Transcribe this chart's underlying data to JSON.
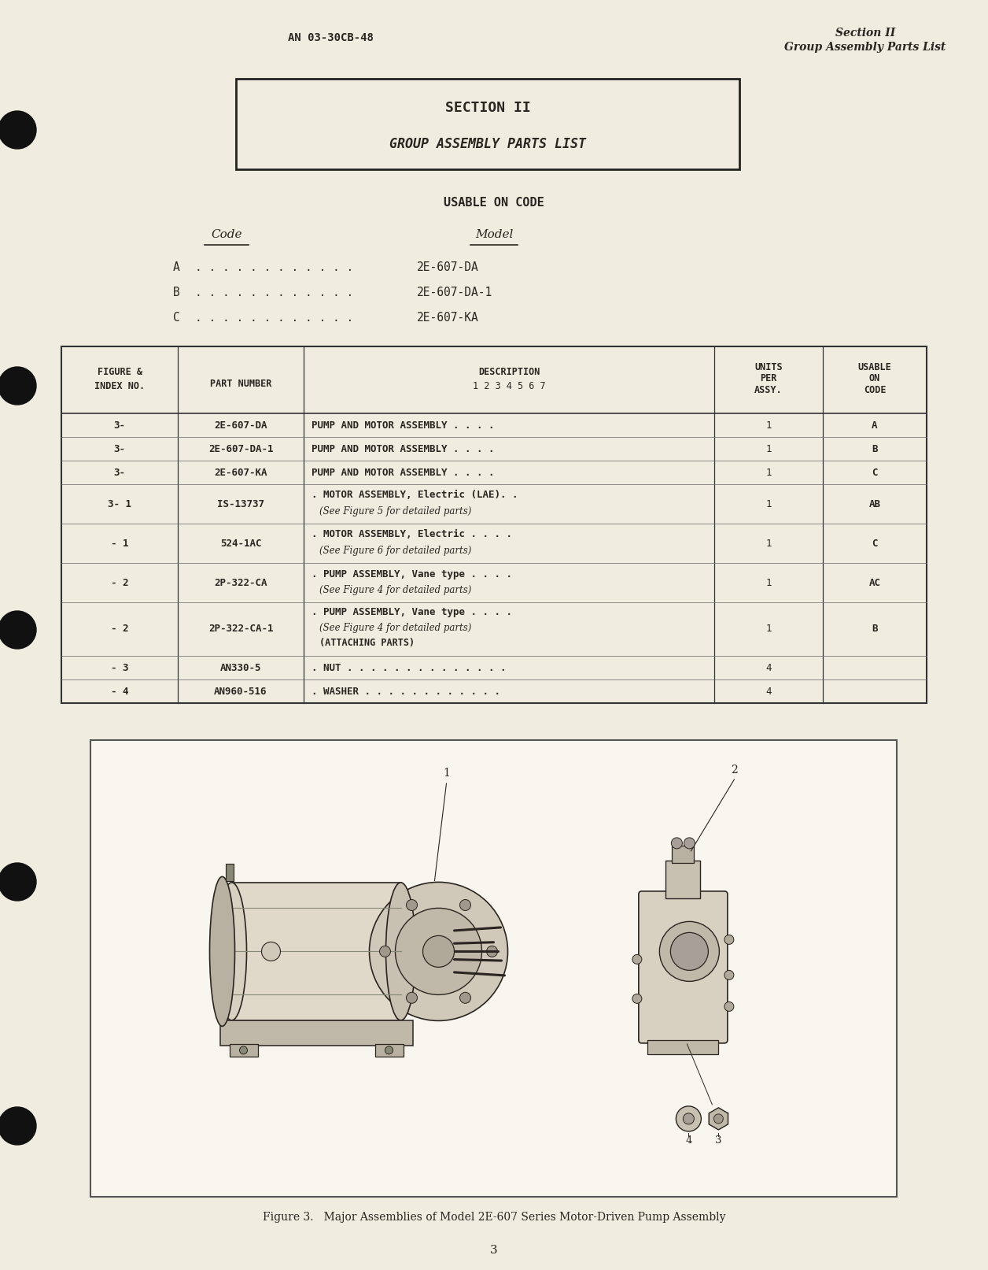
{
  "bg_color": "#f0ece0",
  "page_color": "#f0ece0",
  "fig_box_color": "#ffffff",
  "text_color": "#2a2520",
  "header_left": "AN 03-30CB-48",
  "header_right_line1": "Section II",
  "header_right_line2": "Group Assembly Parts List",
  "section_box_title": "SECTION II",
  "section_box_subtitle": "GROUP ASSEMBLY PARTS LIST",
  "usable_title": "USABLE ON CODE",
  "code_header": "Code",
  "model_header": "Model",
  "codes": [
    {
      "code": "A",
      "dots": ". . . . . . . . . . . .",
      "model": "2E-607-DA"
    },
    {
      "code": "B",
      "dots": ". . . . . . . . . . . .",
      "model": "2E-607-DA-1"
    },
    {
      "code": "C",
      "dots": ". . . . . . . . . . . .",
      "model": "2E-607-KA"
    }
  ],
  "table_rows": [
    {
      "fig": "3-",
      "part": "2E-607-DA",
      "desc1": "PUMP AND MOTOR ASSEMBLY . . . .",
      "desc2": "",
      "desc3": "",
      "qty": "1",
      "code": "A"
    },
    {
      "fig": "3-",
      "part": "2E-607-DA-1",
      "desc1": "PUMP AND MOTOR ASSEMBLY . . . .",
      "desc2": "",
      "desc3": "",
      "qty": "1",
      "code": "B"
    },
    {
      "fig": "3-",
      "part": "2E-607-KA",
      "desc1": "PUMP AND MOTOR ASSEMBLY . . . .",
      "desc2": "",
      "desc3": "",
      "qty": "1",
      "code": "C"
    },
    {
      "fig": "3- 1",
      "part": "IS-13737",
      "desc1": ". MOTOR ASSEMBLY, Electric (LAE). .",
      "desc2": "(See Figure 5 for detailed parts)",
      "desc3": "",
      "qty": "1",
      "code": "AB"
    },
    {
      "fig": "- 1",
      "part": "524-1AC",
      "desc1": ". MOTOR ASSEMBLY, Electric . . . .",
      "desc2": "(See Figure 6 for detailed parts)",
      "desc3": "",
      "qty": "1",
      "code": "C"
    },
    {
      "fig": "- 2",
      "part": "2P-322-CA",
      "desc1": ". PUMP ASSEMBLY, Vane type . . . .",
      "desc2": "(See Figure 4 for detailed parts)",
      "desc3": "",
      "qty": "1",
      "code": "AC"
    },
    {
      "fig": "- 2",
      "part": "2P-322-CA-1",
      "desc1": ". PUMP ASSEMBLY, Vane type . . . .",
      "desc2": "(See Figure 4 for detailed parts)",
      "desc3": "(ATTACHING PARTS)",
      "qty": "1",
      "code": "B"
    },
    {
      "fig": "- 3",
      "part": "AN330-5",
      "desc1": ". NUT . . . . . . . . . . . . . .",
      "desc2": "",
      "desc3": "",
      "qty": "4",
      "code": ""
    },
    {
      "fig": "- 4",
      "part": "AN960-516",
      "desc1": ". WASHER . . . . . . . . . . . .",
      "desc2": "",
      "desc3": "",
      "qty": "4",
      "code": ""
    }
  ],
  "figure_caption": "Figure 3.   Major Assemblies of Model 2E-607 Series Motor-Driven Pump Assembly",
  "page_number": "3"
}
